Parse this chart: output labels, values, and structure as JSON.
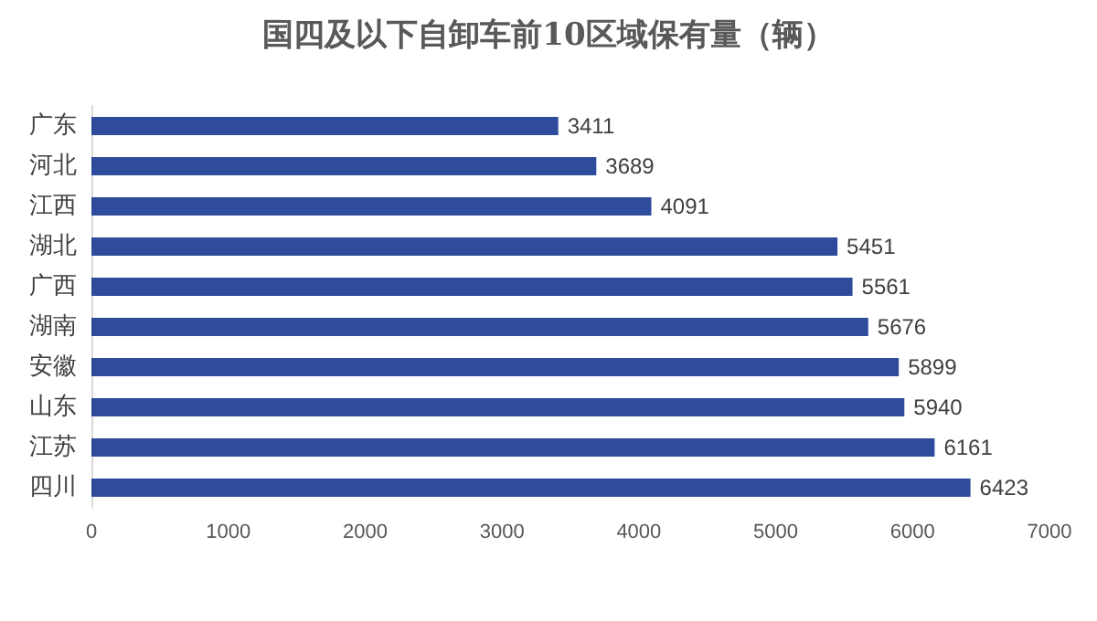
{
  "chart_data": {
    "type": "bar",
    "orientation": "horizontal",
    "title": "国四及以下自卸车前10区域保有量（辆）",
    "categories": [
      "广东",
      "河北",
      "江西",
      "湖北",
      "广西",
      "湖南",
      "安徽",
      "山东",
      "江苏",
      "四川"
    ],
    "values": [
      3411,
      3689,
      4091,
      5451,
      5561,
      5676,
      5899,
      5940,
      6161,
      6423
    ],
    "color": "#2f4c9c",
    "data_labels": true,
    "grid": false,
    "xlim": [
      0,
      7000
    ],
    "xticks": [
      0,
      1000,
      2000,
      3000,
      4000,
      5000,
      6000,
      7000
    ]
  }
}
